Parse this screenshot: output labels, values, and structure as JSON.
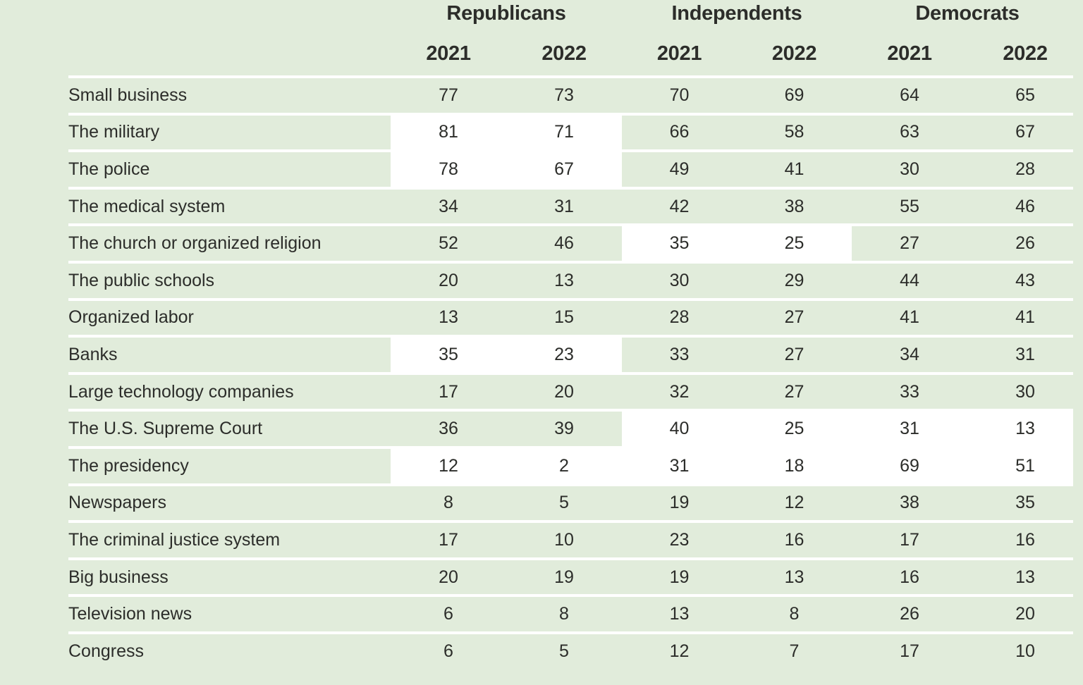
{
  "colors": {
    "background": "#e1ecdb",
    "highlight": "#ffffff",
    "divider": "#ffffff",
    "text": "#2c2d2a"
  },
  "chart_data": {
    "type": "table",
    "column_groups": [
      {
        "label": "Republicans"
      },
      {
        "label": "Independents"
      },
      {
        "label": "Democrats"
      }
    ],
    "year_headers": [
      "2021",
      "2022",
      "2021",
      "2022",
      "2021",
      "2022"
    ],
    "rows": [
      {
        "label": "Small business",
        "values": [
          77,
          73,
          70,
          69,
          64,
          65
        ],
        "highlight": []
      },
      {
        "label": "The military",
        "values": [
          81,
          71,
          66,
          58,
          63,
          67
        ],
        "highlight": [
          "republicans"
        ]
      },
      {
        "label": "The police",
        "values": [
          78,
          67,
          49,
          41,
          30,
          28
        ],
        "highlight": [
          "republicans"
        ]
      },
      {
        "label": "The medical system",
        "values": [
          34,
          31,
          42,
          38,
          55,
          46
        ],
        "highlight": []
      },
      {
        "label": "The church or organized religion",
        "values": [
          52,
          46,
          35,
          25,
          27,
          26
        ],
        "highlight": [
          "independents"
        ]
      },
      {
        "label": "The public schools",
        "values": [
          20,
          13,
          30,
          29,
          44,
          43
        ],
        "highlight": []
      },
      {
        "label": "Organized labor",
        "values": [
          13,
          15,
          28,
          27,
          41,
          41
        ],
        "highlight": []
      },
      {
        "label": "Banks",
        "values": [
          35,
          23,
          33,
          27,
          34,
          31
        ],
        "highlight": [
          "republicans"
        ]
      },
      {
        "label": "Large technology companies",
        "values": [
          17,
          20,
          32,
          27,
          33,
          30
        ],
        "highlight": []
      },
      {
        "label": "The U.S. Supreme Court",
        "values": [
          36,
          39,
          40,
          25,
          31,
          13
        ],
        "highlight": [
          "independents",
          "democrats"
        ]
      },
      {
        "label": "The presidency",
        "values": [
          12,
          2,
          31,
          18,
          69,
          51
        ],
        "highlight": [
          "republicans",
          "independents",
          "democrats"
        ]
      },
      {
        "label": "Newspapers",
        "values": [
          8,
          5,
          19,
          12,
          38,
          35
        ],
        "highlight": []
      },
      {
        "label": "The criminal justice system",
        "values": [
          17,
          10,
          23,
          16,
          17,
          16
        ],
        "highlight": []
      },
      {
        "label": "Big business",
        "values": [
          20,
          19,
          19,
          13,
          16,
          13
        ],
        "highlight": []
      },
      {
        "label": "Television news",
        "values": [
          6,
          8,
          13,
          8,
          26,
          20
        ],
        "highlight": []
      },
      {
        "label": "Congress",
        "values": [
          6,
          5,
          12,
          7,
          17,
          10
        ],
        "highlight": []
      }
    ]
  }
}
